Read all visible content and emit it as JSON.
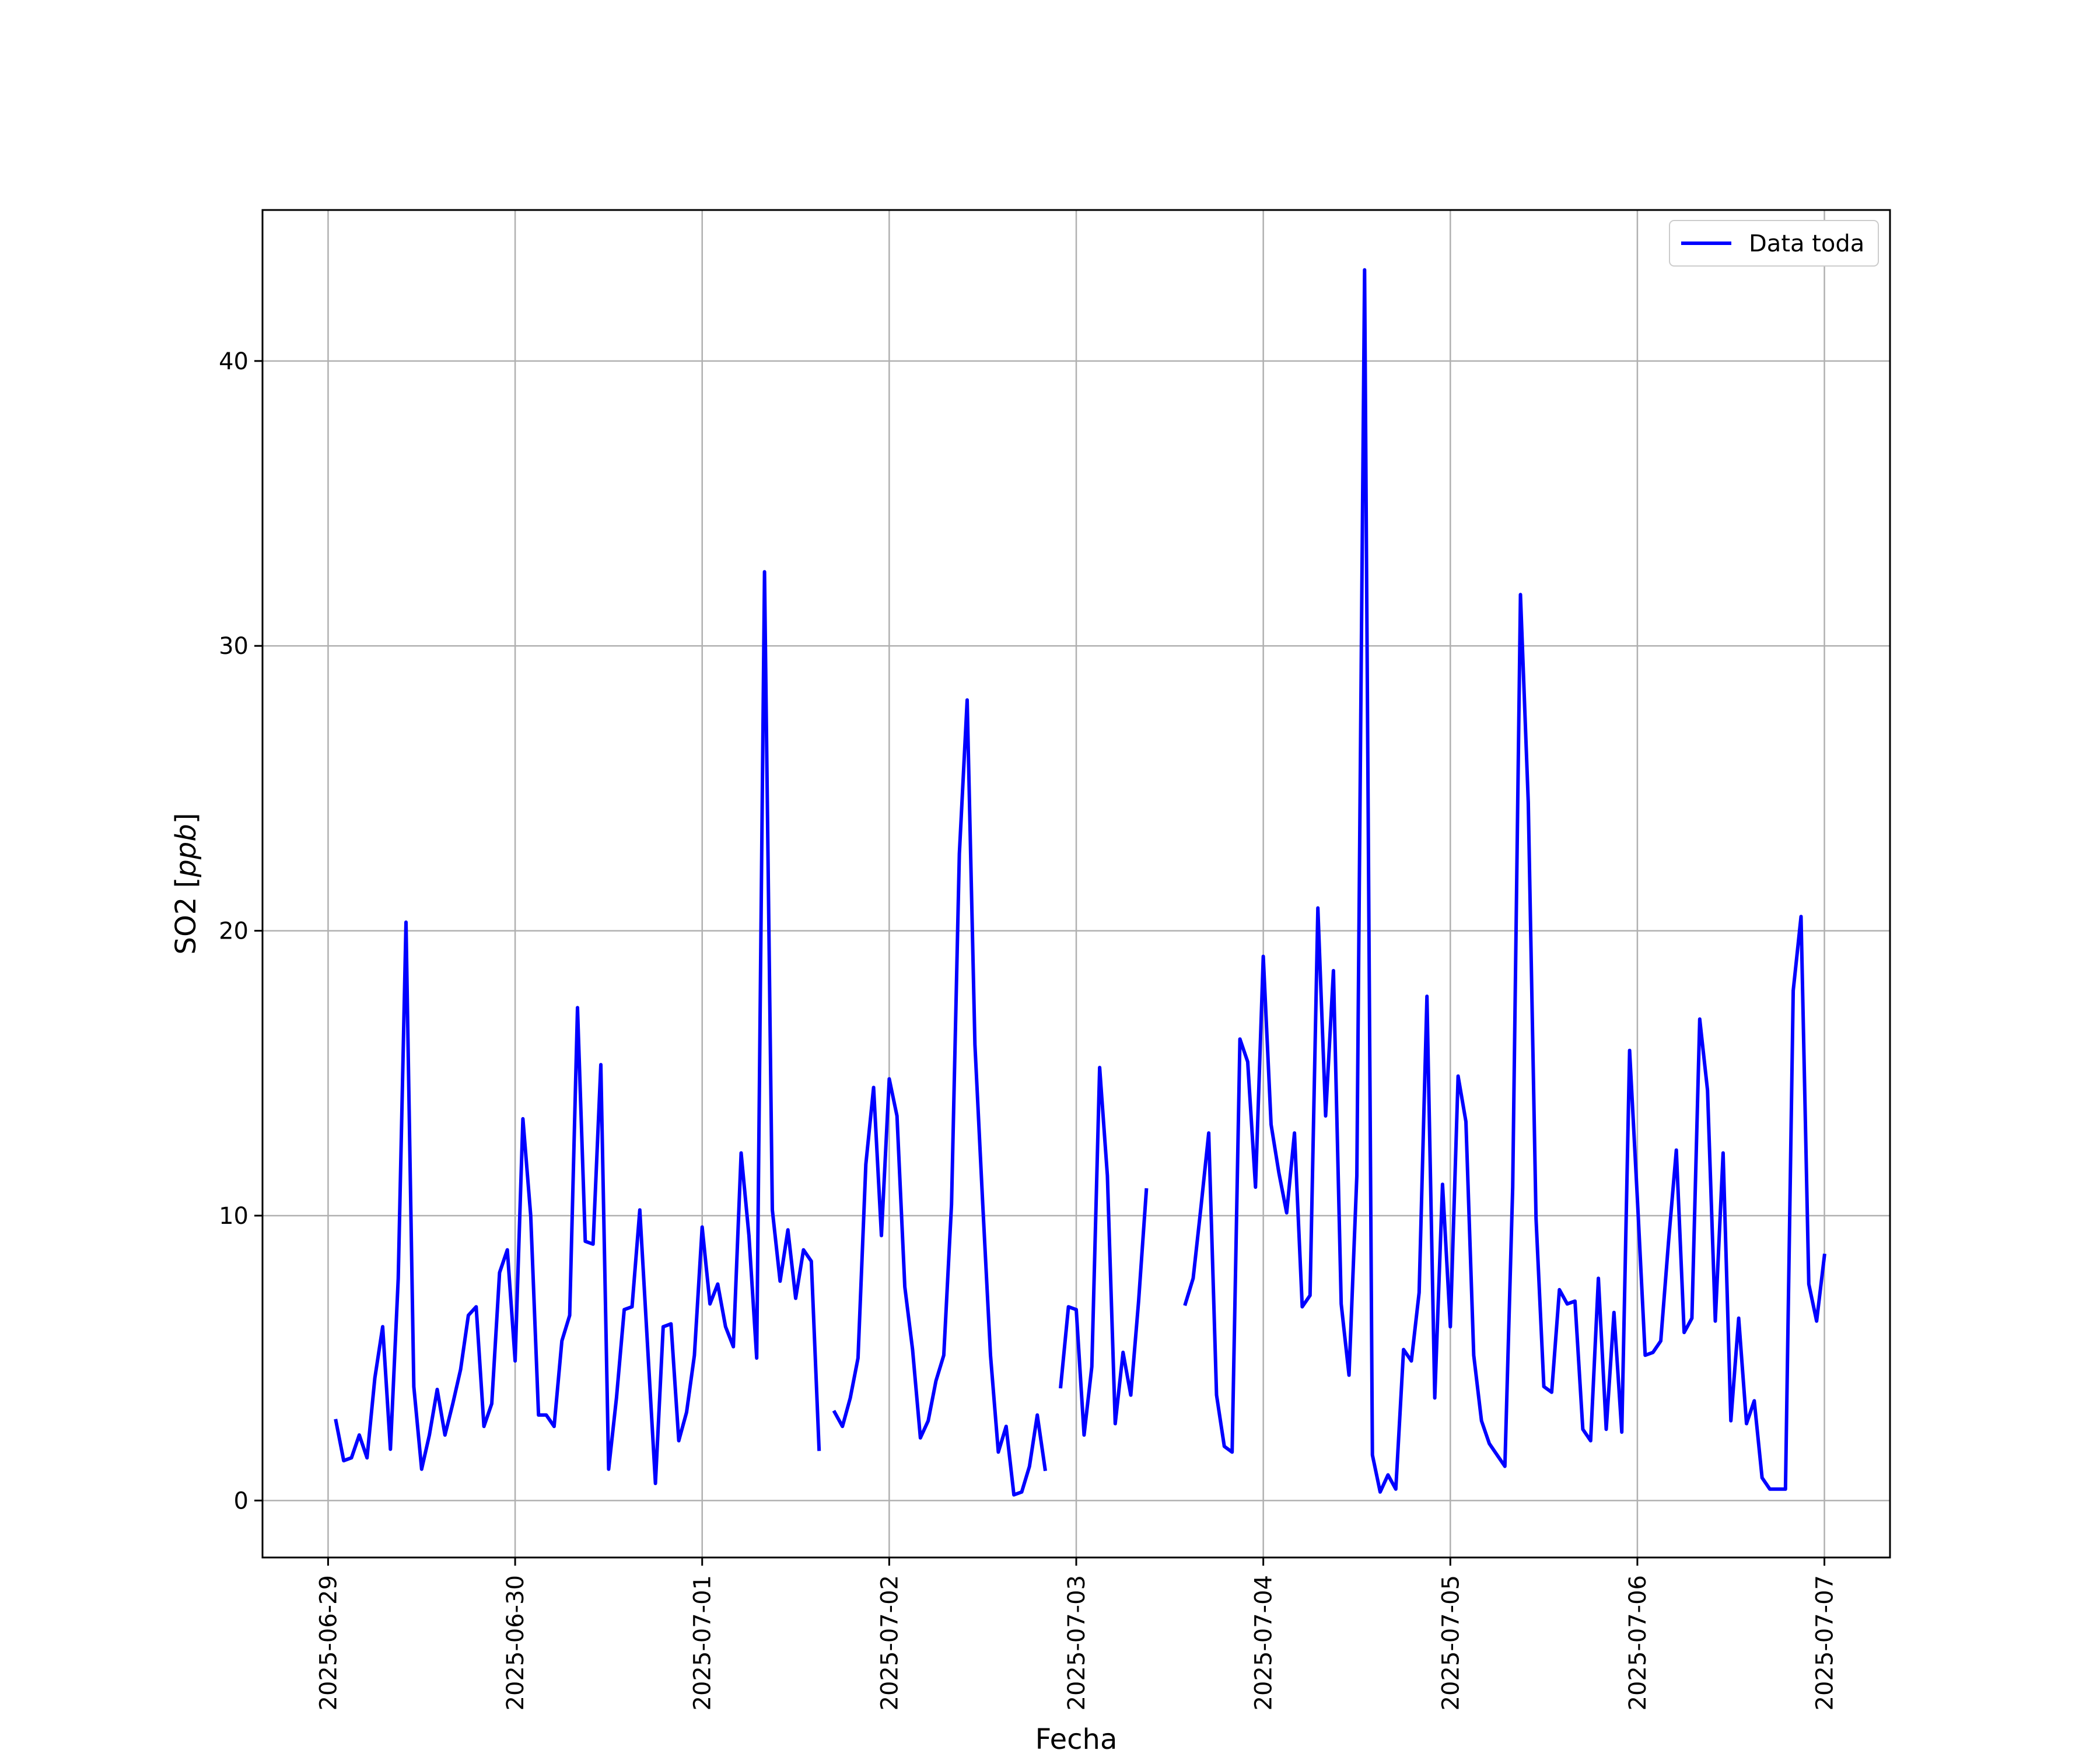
{
  "chart_data": {
    "type": "line",
    "xlabel": "Fecha",
    "ylabel": "SO2 [ppb]",
    "ylabel_base": "SO2 [",
    "ylabel_unit": "ppb",
    "ylabel_close": "]",
    "x_ticks": [
      "2025-06-29",
      "2025-06-30",
      "2025-07-01",
      "2025-07-02",
      "2025-07-03",
      "2025-07-04",
      "2025-07-05",
      "2025-07-06",
      "2025-07-07"
    ],
    "y_ticks": [
      0,
      10,
      20,
      30,
      40
    ],
    "y_tick_labels": [
      "0",
      "10",
      "20",
      "30",
      "40"
    ],
    "xlim": [
      "2025-06-28 15:35",
      "2025-07-07 08:25"
    ],
    "ylim": [
      -2,
      45.3
    ],
    "grid": true,
    "legend_position": "top-right",
    "colors": {
      "line": "#0000ff",
      "grid": "#b0b0b0",
      "axes": "#000000"
    },
    "series": [
      {
        "name": "Data toda",
        "segments": [
          [
            [
              "2025-06-29 01:00",
              2.8
            ],
            [
              "2025-06-29 02:00",
              1.4
            ],
            [
              "2025-06-29 03:00",
              1.5
            ],
            [
              "2025-06-29 04:00",
              2.3
            ],
            [
              "2025-06-29 05:00",
              1.5
            ],
            [
              "2025-06-29 06:00",
              4.3
            ],
            [
              "2025-06-29 07:00",
              6.1
            ],
            [
              "2025-06-29 08:00",
              1.8
            ],
            [
              "2025-06-29 09:00",
              7.8
            ],
            [
              "2025-06-29 10:00",
              20.3
            ],
            [
              "2025-06-29 11:00",
              4.0
            ],
            [
              "2025-06-29 12:00",
              1.1
            ],
            [
              "2025-06-29 13:00",
              2.3
            ],
            [
              "2025-06-29 14:00",
              3.9
            ],
            [
              "2025-06-29 15:00",
              2.3
            ],
            [
              "2025-06-29 16:00",
              3.4
            ],
            [
              "2025-06-29 17:00",
              4.6
            ],
            [
              "2025-06-29 18:00",
              6.5
            ],
            [
              "2025-06-29 19:00",
              6.8
            ],
            [
              "2025-06-29 20:00",
              2.6
            ],
            [
              "2025-06-29 21:00",
              3.4
            ],
            [
              "2025-06-29 22:00",
              8.0
            ],
            [
              "2025-06-29 23:00",
              8.8
            ],
            [
              "2025-06-30 00:00",
              4.9
            ],
            [
              "2025-06-30 01:00",
              13.4
            ],
            [
              "2025-06-30 02:00",
              10.0
            ],
            [
              "2025-06-30 03:00",
              3.0
            ],
            [
              "2025-06-30 04:00",
              3.0
            ],
            [
              "2025-06-30 05:00",
              2.6
            ],
            [
              "2025-06-30 06:00",
              5.6
            ],
            [
              "2025-06-30 07:00",
              6.5
            ],
            [
              "2025-06-30 08:00",
              17.3
            ],
            [
              "2025-06-30 09:00",
              9.1
            ],
            [
              "2025-06-30 10:00",
              9.0
            ],
            [
              "2025-06-30 11:00",
              15.3
            ],
            [
              "2025-06-30 12:00",
              1.1
            ],
            [
              "2025-06-30 13:00",
              3.6
            ],
            [
              "2025-06-30 14:00",
              6.7
            ],
            [
              "2025-06-30 15:00",
              6.8
            ],
            [
              "2025-06-30 16:00",
              10.2
            ],
            [
              "2025-06-30 17:00",
              5.4
            ],
            [
              "2025-06-30 18:00",
              0.6
            ],
            [
              "2025-06-30 19:00",
              6.1
            ],
            [
              "2025-06-30 20:00",
              6.2
            ],
            [
              "2025-06-30 21:00",
              2.1
            ],
            [
              "2025-06-30 22:00",
              3.1
            ],
            [
              "2025-06-30 23:00",
              5.1
            ],
            [
              "2025-07-01 00:00",
              9.6
            ],
            [
              "2025-07-01 01:00",
              6.9
            ],
            [
              "2025-07-01 02:00",
              7.6
            ],
            [
              "2025-07-01 03:00",
              6.1
            ],
            [
              "2025-07-01 04:00",
              5.4
            ],
            [
              "2025-07-01 05:00",
              12.2
            ],
            [
              "2025-07-01 06:00",
              9.3
            ],
            [
              "2025-07-01 07:00",
              5.0
            ],
            [
              "2025-07-01 08:00",
              32.6
            ],
            [
              "2025-07-01 09:00",
              10.2
            ],
            [
              "2025-07-01 10:00",
              7.7
            ],
            [
              "2025-07-01 11:00",
              9.5
            ],
            [
              "2025-07-01 12:00",
              7.1
            ],
            [
              "2025-07-01 13:00",
              8.8
            ],
            [
              "2025-07-01 14:00",
              8.4
            ],
            [
              "2025-07-01 15:00",
              1.8
            ]
          ],
          [
            [
              "2025-07-01 17:00",
              3.1
            ],
            [
              "2025-07-01 18:00",
              2.6
            ],
            [
              "2025-07-01 19:00",
              3.6
            ],
            [
              "2025-07-01 20:00",
              5.0
            ],
            [
              "2025-07-01 21:00",
              11.8
            ],
            [
              "2025-07-01 22:00",
              14.5
            ],
            [
              "2025-07-01 23:00",
              9.3
            ],
            [
              "2025-07-02 00:00",
              14.8
            ],
            [
              "2025-07-02 01:00",
              13.5
            ],
            [
              "2025-07-02 02:00",
              7.5
            ],
            [
              "2025-07-02 03:00",
              5.3
            ],
            [
              "2025-07-02 04:00",
              2.2
            ],
            [
              "2025-07-02 05:00",
              2.8
            ],
            [
              "2025-07-02 06:00",
              4.2
            ],
            [
              "2025-07-02 07:00",
              5.1
            ],
            [
              "2025-07-02 08:00",
              10.4
            ],
            [
              "2025-07-02 09:00",
              22.7
            ],
            [
              "2025-07-02 10:00",
              28.1
            ],
            [
              "2025-07-02 11:00",
              16.0
            ],
            [
              "2025-07-02 12:00",
              10.4
            ],
            [
              "2025-07-02 13:00",
              5.1
            ],
            [
              "2025-07-02 14:00",
              1.7
            ],
            [
              "2025-07-02 15:00",
              2.6
            ],
            [
              "2025-07-02 16:00",
              0.2
            ],
            [
              "2025-07-02 17:00",
              0.3
            ],
            [
              "2025-07-02 18:00",
              1.2
            ],
            [
              "2025-07-02 19:00",
              3.0
            ],
            [
              "2025-07-02 20:00",
              1.1
            ]
          ],
          [
            [
              "2025-07-02 22:00",
              4.0
            ],
            [
              "2025-07-02 23:00",
              6.8
            ],
            [
              "2025-07-03 00:00",
              6.7
            ],
            [
              "2025-07-03 01:00",
              2.3
            ],
            [
              "2025-07-03 02:00",
              4.7
            ],
            [
              "2025-07-03 03:00",
              15.2
            ],
            [
              "2025-07-03 04:00",
              11.4
            ],
            [
              "2025-07-03 05:00",
              2.7
            ],
            [
              "2025-07-03 06:00",
              5.2
            ],
            [
              "2025-07-03 07:00",
              3.7
            ],
            [
              "2025-07-03 08:00",
              7.0
            ],
            [
              "2025-07-03 09:00",
              10.9
            ]
          ],
          [
            [
              "2025-07-03 14:00",
              6.9
            ],
            [
              "2025-07-03 15:00",
              7.8
            ],
            [
              "2025-07-03 16:00",
              10.3
            ],
            [
              "2025-07-03 17:00",
              12.9
            ],
            [
              "2025-07-03 18:00",
              3.7
            ],
            [
              "2025-07-03 19:00",
              1.9
            ],
            [
              "2025-07-03 20:00",
              1.7
            ],
            [
              "2025-07-03 21:00",
              16.2
            ],
            [
              "2025-07-03 22:00",
              15.4
            ],
            [
              "2025-07-03 23:00",
              11.0
            ],
            [
              "2025-07-04 00:00",
              19.1
            ],
            [
              "2025-07-04 01:00",
              13.2
            ],
            [
              "2025-07-04 02:00",
              11.5
            ],
            [
              "2025-07-04 03:00",
              10.1
            ],
            [
              "2025-07-04 04:00",
              12.9
            ],
            [
              "2025-07-04 05:00",
              6.8
            ],
            [
              "2025-07-04 06:00",
              7.2
            ],
            [
              "2025-07-04 07:00",
              20.8
            ],
            [
              "2025-07-04 08:00",
              13.5
            ],
            [
              "2025-07-04 09:00",
              18.6
            ],
            [
              "2025-07-04 10:00",
              6.9
            ],
            [
              "2025-07-04 11:00",
              4.4
            ],
            [
              "2025-07-04 12:00",
              11.4
            ],
            [
              "2025-07-04 13:00",
              43.2
            ],
            [
              "2025-07-04 14:00",
              1.6
            ],
            [
              "2025-07-04 15:00",
              0.3
            ],
            [
              "2025-07-04 16:00",
              0.9
            ],
            [
              "2025-07-04 17:00",
              0.4
            ],
            [
              "2025-07-04 18:00",
              5.3
            ],
            [
              "2025-07-04 19:00",
              4.9
            ],
            [
              "2025-07-04 20:00",
              7.3
            ],
            [
              "2025-07-04 21:00",
              17.7
            ],
            [
              "2025-07-04 22:00",
              3.6
            ],
            [
              "2025-07-04 23:00",
              11.1
            ],
            [
              "2025-07-05 00:00",
              6.1
            ],
            [
              "2025-07-05 01:00",
              14.9
            ],
            [
              "2025-07-05 02:00",
              13.3
            ],
            [
              "2025-07-05 03:00",
              5.1
            ],
            [
              "2025-07-05 04:00",
              2.8
            ],
            [
              "2025-07-05 05:00",
              2.0
            ],
            [
              "2025-07-05 06:00",
              1.6
            ],
            [
              "2025-07-05 07:00",
              1.2
            ],
            [
              "2025-07-05 08:00",
              11.0
            ],
            [
              "2025-07-05 09:00",
              31.8
            ],
            [
              "2025-07-05 10:00",
              24.5
            ],
            [
              "2025-07-05 11:00",
              9.9
            ],
            [
              "2025-07-05 12:00",
              4.0
            ],
            [
              "2025-07-05 13:00",
              3.8
            ],
            [
              "2025-07-05 14:00",
              7.4
            ],
            [
              "2025-07-05 15:00",
              6.9
            ],
            [
              "2025-07-05 16:00",
              7.0
            ],
            [
              "2025-07-05 17:00",
              2.5
            ],
            [
              "2025-07-05 18:00",
              2.1
            ],
            [
              "2025-07-05 19:00",
              7.8
            ],
            [
              "2025-07-05 20:00",
              2.5
            ],
            [
              "2025-07-05 21:00",
              6.6
            ],
            [
              "2025-07-05 22:00",
              2.4
            ],
            [
              "2025-07-05 23:00",
              15.8
            ],
            [
              "2025-07-06 00:00",
              10.6
            ],
            [
              "2025-07-06 01:00",
              5.1
            ],
            [
              "2025-07-06 02:00",
              5.2
            ],
            [
              "2025-07-06 03:00",
              5.6
            ],
            [
              "2025-07-06 04:00",
              9.1
            ],
            [
              "2025-07-06 05:00",
              12.3
            ],
            [
              "2025-07-06 06:00",
              5.9
            ],
            [
              "2025-07-06 07:00",
              6.4
            ],
            [
              "2025-07-06 08:00",
              16.9
            ],
            [
              "2025-07-06 09:00",
              14.4
            ],
            [
              "2025-07-06 10:00",
              6.3
            ],
            [
              "2025-07-06 11:00",
              12.2
            ],
            [
              "2025-07-06 12:00",
              2.8
            ],
            [
              "2025-07-06 13:00",
              6.4
            ],
            [
              "2025-07-06 14:00",
              2.7
            ],
            [
              "2025-07-06 15:00",
              3.5
            ],
            [
              "2025-07-06 16:00",
              0.8
            ],
            [
              "2025-07-06 17:00",
              0.4
            ],
            [
              "2025-07-06 18:00",
              0.4
            ],
            [
              "2025-07-06 19:00",
              0.4
            ],
            [
              "2025-07-06 20:00",
              17.9
            ],
            [
              "2025-07-06 21:00",
              20.5
            ],
            [
              "2025-07-06 22:00",
              7.6
            ],
            [
              "2025-07-06 23:00",
              6.3
            ],
            [
              "2025-07-07 00:00",
              8.6
            ]
          ]
        ]
      }
    ]
  }
}
